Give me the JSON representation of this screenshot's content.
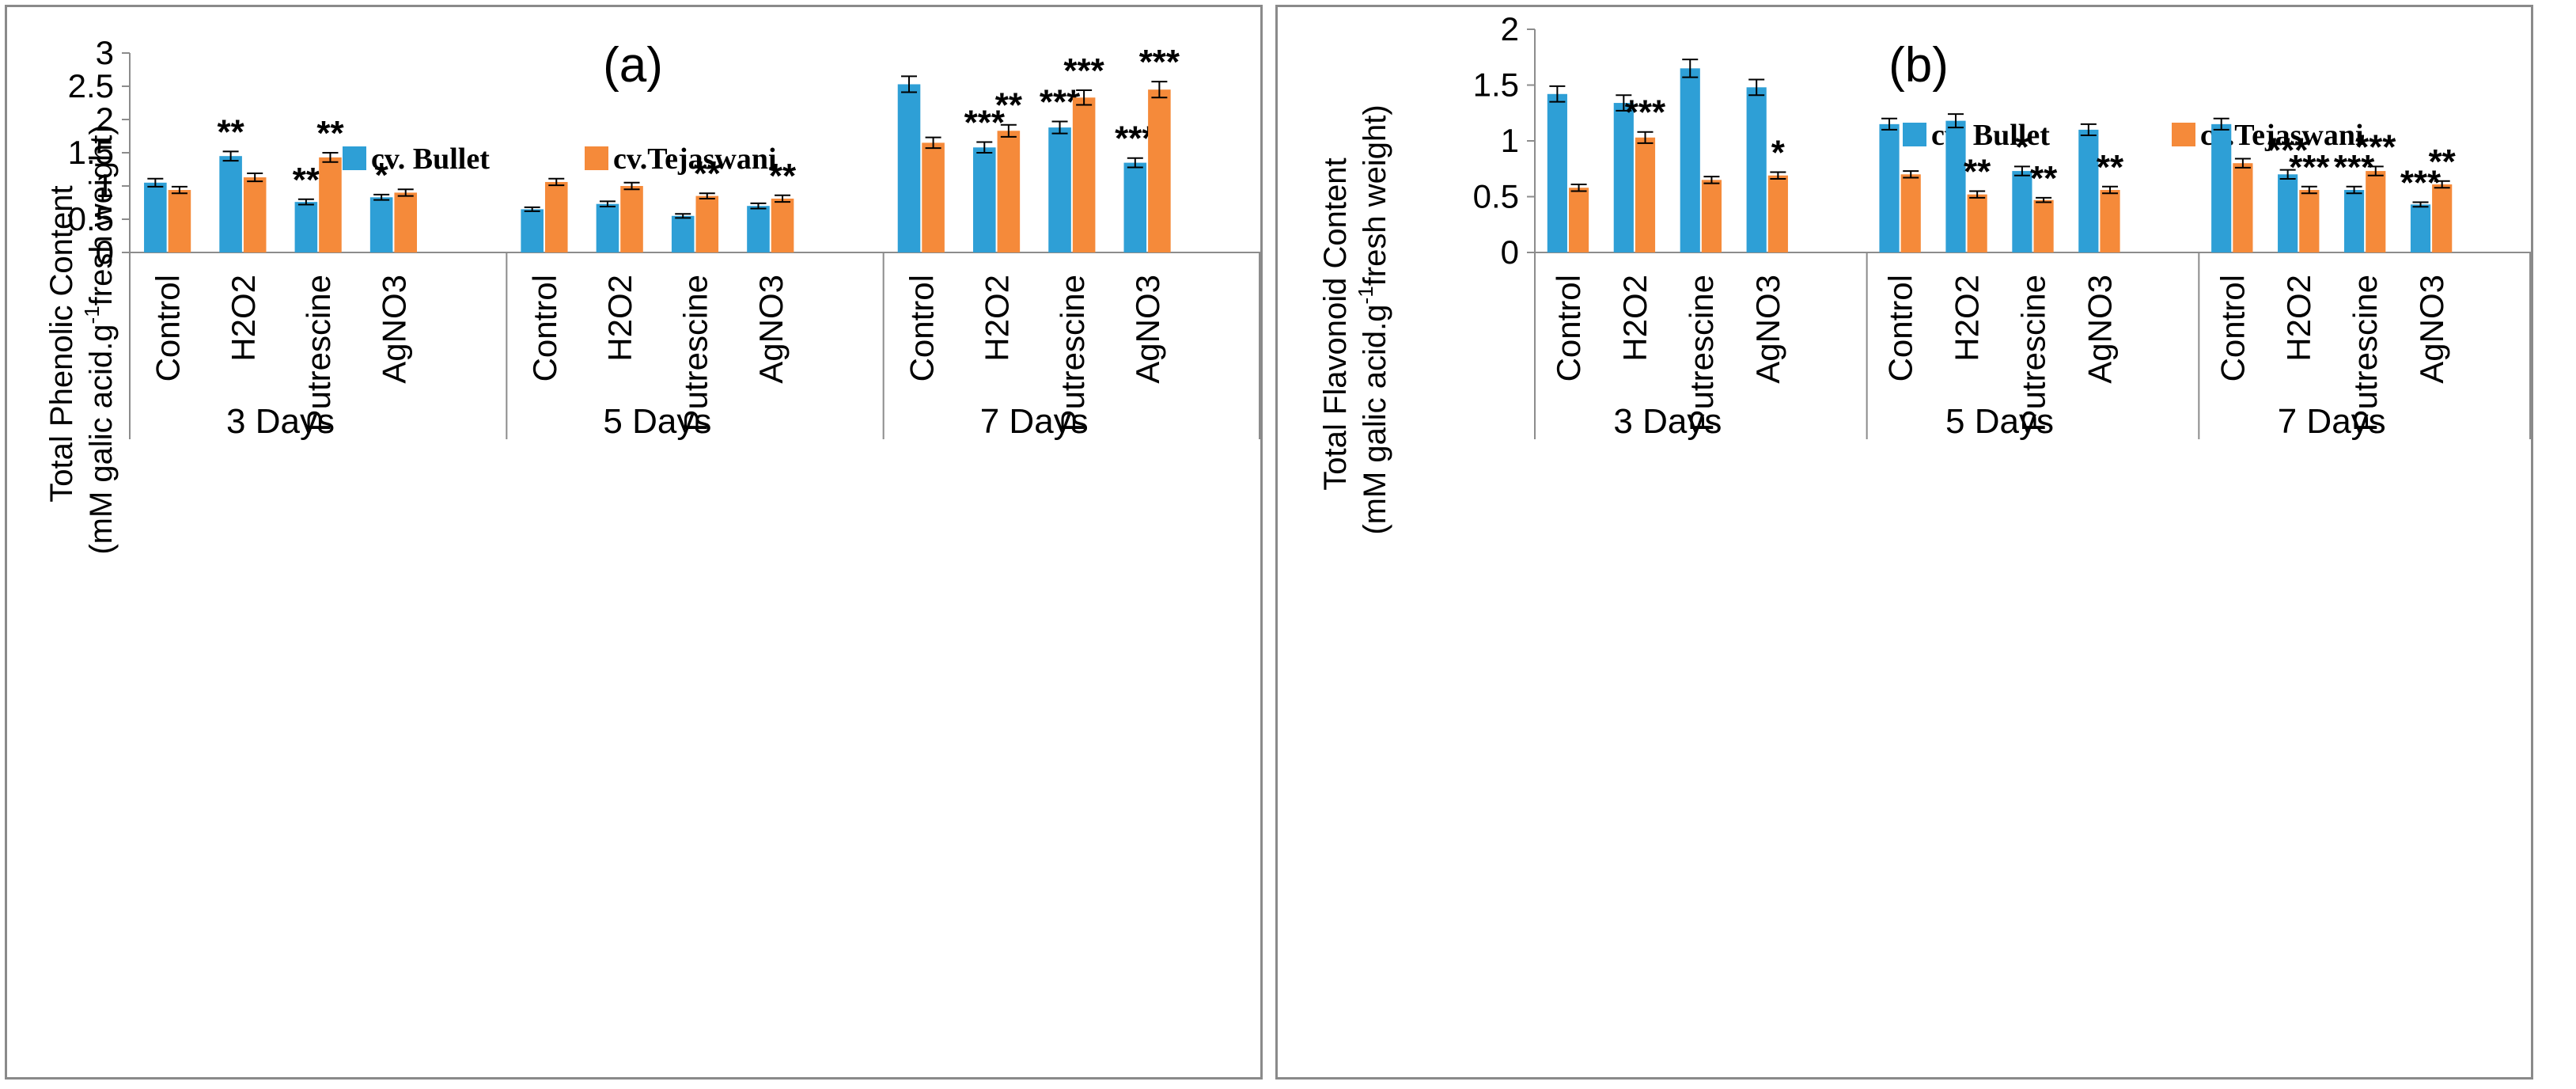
{
  "colors": {
    "bullet": "#2e9fd6",
    "tejaswani": "#f58a3a",
    "axis": "#8c8c8c",
    "text": "#000000",
    "border": "#8a8a8a"
  },
  "group_labels": [
    "3 Days",
    "5 Days",
    "7 Days"
  ],
  "treatment_labels": [
    "Control",
    "H2O2",
    "Putrescine",
    "AgNO3"
  ],
  "chart_data": [
    {
      "type": "bar",
      "title": "(a)",
      "ylabel_line1": "Total Phenolic Content",
      "ylabel_line2_pre": "(mM galic acid.g",
      "ylabel_sup": "-1",
      "ylabel_line2_post": "fresh weight)",
      "ylim": [
        0,
        3
      ],
      "yticks": [
        0,
        0.5,
        1,
        1.5,
        2,
        2.5,
        3
      ],
      "ytick_labels": [
        "0",
        "0.5",
        "1",
        "1.5",
        "2",
        "2.5",
        "3"
      ],
      "legend_position": "top",
      "series": [
        {
          "name": "cv. Bullet",
          "values": [
            1.05,
            1.45,
            0.76,
            0.83,
            0.65,
            0.73,
            0.55,
            0.7,
            2.53,
            1.58,
            1.88,
            1.35
          ],
          "errors": [
            0.06,
            0.07,
            0.04,
            0.04,
            0.03,
            0.04,
            0.03,
            0.04,
            0.12,
            0.08,
            0.09,
            0.07
          ],
          "annotations": [
            "",
            "**",
            "**",
            "*",
            "",
            "",
            "",
            "",
            "",
            "***",
            "***",
            "***"
          ]
        },
        {
          "name": "cv.Tejaswani",
          "values": [
            0.94,
            1.13,
            1.43,
            0.9,
            1.06,
            1.0,
            0.85,
            0.81,
            1.65,
            1.83,
            2.33,
            2.45
          ],
          "errors": [
            0.05,
            0.06,
            0.07,
            0.05,
            0.05,
            0.05,
            0.04,
            0.05,
            0.08,
            0.09,
            0.11,
            0.12
          ],
          "annotations": [
            "",
            "",
            "**",
            "",
            "",
            "",
            "**",
            "**",
            "",
            "**",
            "***",
            "***"
          ]
        }
      ]
    },
    {
      "type": "bar",
      "title": "(b)",
      "ylabel_line1": "Total Flavonoid Content",
      "ylabel_line2_pre": "(mM galic acid.g",
      "ylabel_sup": "-1",
      "ylabel_line2_post": "fresh weight)",
      "ylim": [
        0,
        2
      ],
      "yticks": [
        0,
        0.5,
        1,
        1.5,
        2
      ],
      "ytick_labels": [
        "0",
        "0.5",
        "1",
        "1.5",
        "2"
      ],
      "legend_position": "top-right",
      "series": [
        {
          "name": "cv. Bullet",
          "values": [
            1.42,
            1.34,
            1.65,
            1.48,
            1.15,
            1.18,
            0.73,
            1.1,
            1.15,
            0.7,
            0.56,
            0.43
          ],
          "errors": [
            0.07,
            0.07,
            0.08,
            0.07,
            0.05,
            0.06,
            0.04,
            0.05,
            0.05,
            0.04,
            0.03,
            0.02
          ],
          "annotations": [
            "",
            "",
            "",
            "",
            "",
            "",
            "*",
            "",
            "",
            "***",
            "***",
            "***"
          ]
        },
        {
          "name": "cv.Tejaswani",
          "values": [
            0.58,
            1.03,
            0.65,
            0.69,
            0.7,
            0.52,
            0.47,
            0.56,
            0.8,
            0.56,
            0.73,
            0.61
          ],
          "errors": [
            0.03,
            0.05,
            0.03,
            0.03,
            0.03,
            0.03,
            0.02,
            0.03,
            0.04,
            0.03,
            0.04,
            0.03
          ],
          "annotations": [
            "",
            "***",
            "",
            "*",
            "",
            "**",
            "**",
            "**",
            "",
            "***",
            "***",
            "**"
          ]
        }
      ]
    }
  ]
}
